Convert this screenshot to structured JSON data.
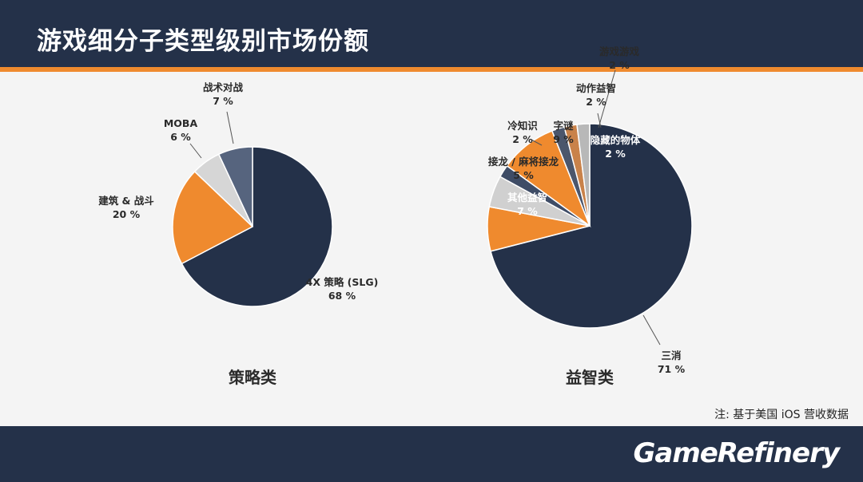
{
  "header": {
    "title": "游戏细分子类型级别市场份额"
  },
  "footer": {
    "note": "注: 基于美国 iOS 营收数据",
    "logo": "GameRefinery"
  },
  "chart_data": [
    {
      "type": "pie",
      "title": "策略类",
      "unit": "%",
      "slices": [
        {
          "label": "4X 策略 (SLG)",
          "value": 68,
          "color": "#243149"
        },
        {
          "label": "建筑 & 战斗",
          "value": 20,
          "color": "#ef8a2e"
        },
        {
          "label": "MOBA",
          "value": 6,
          "color": "#d6d6d6"
        },
        {
          "label": "战术对战",
          "value": 7,
          "color": "#56647e"
        }
      ]
    },
    {
      "type": "pie",
      "title": "益智类",
      "unit": "%",
      "slices": [
        {
          "label": "三消",
          "value": 71,
          "color": "#243149"
        },
        {
          "label": "其他益智",
          "value": 7,
          "color": "#ef8a2e"
        },
        {
          "label": "接龙 / 麻将接龙",
          "value": 5,
          "color": "#d0d0d0"
        },
        {
          "label": "冷知识",
          "value": 2,
          "color": "#3e4c66"
        },
        {
          "label": "字谜",
          "value": 9,
          "color": "#ef8a2e"
        },
        {
          "label": "游戏游戏",
          "value": 2,
          "color": "#4b566c"
        },
        {
          "label": "动作益智",
          "value": 2,
          "color": "#c9824a"
        },
        {
          "label": "隐藏的物体",
          "value": 2,
          "color": "#b8b8b8"
        }
      ]
    }
  ]
}
